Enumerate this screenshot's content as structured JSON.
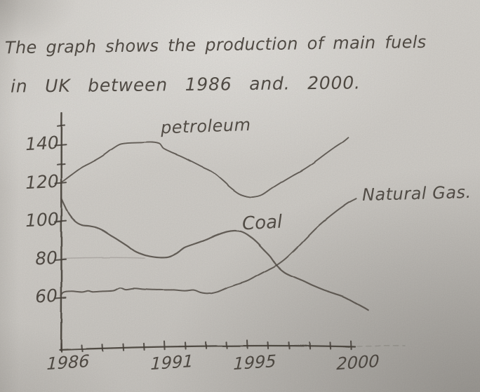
{
  "header": {
    "title_line1": "The graph shows the production of main fuels",
    "title_line2": "in UK between 1986 and. 2000."
  },
  "chart_data": {
    "type": "line",
    "title": "The graph shows the production of main fuels in UK between 1986 and 2000.",
    "xlabel": "",
    "ylabel": "",
    "grid": false,
    "legend": "inline-handwritten-labels",
    "colors": {
      "pencil": "#554f48",
      "axis_pencil": "#49433c",
      "paper": "#d2cfca"
    },
    "x_years": [
      1986,
      1987,
      1988,
      1989,
      1990,
      1991,
      1992,
      1993,
      1994,
      1995,
      1996,
      1997,
      1998,
      1999,
      2000
    ],
    "x_axis": {
      "min": 1986,
      "max": 2000,
      "tick_years": [
        1986,
        1987,
        1988,
        1989,
        1990,
        1991,
        1992,
        1993,
        1994,
        1995,
        1996,
        1997,
        1998,
        1999,
        2000
      ],
      "labels": [
        {
          "year": 1986,
          "text": "1986"
        },
        {
          "year": 1991,
          "text": "1991"
        },
        {
          "year": 1995,
          "text": "1995"
        },
        {
          "year": 2000,
          "text": "2000"
        }
      ]
    },
    "y_axis": {
      "range": [
        50,
        152
      ],
      "ticks": [
        {
          "value": 150,
          "label": ""
        },
        {
          "value": 140,
          "label": "140"
        },
        {
          "value": 130,
          "label": ""
        },
        {
          "value": 120,
          "label": "120"
        },
        {
          "value": 100,
          "label": "100"
        },
        {
          "value": 80,
          "label": "80"
        },
        {
          "value": 60,
          "label": "60"
        }
      ]
    },
    "series": [
      {
        "name": "petroleum",
        "values": [
          120,
          128,
          134,
          141,
          141,
          137,
          131,
          126,
          118,
          113,
          117,
          124,
          130,
          138,
          144
        ],
        "draw_points": [
          [
            1986,
            120.5
          ],
          [
            1986.5,
            124.5
          ],
          [
            1987,
            128
          ],
          [
            1987.5,
            131.2
          ],
          [
            1988,
            134.5
          ],
          [
            1988.5,
            138
          ],
          [
            1988.85,
            140.3
          ],
          [
            1989.2,
            141.2
          ],
          [
            1989.8,
            141.4
          ],
          [
            1990.4,
            141.3
          ],
          [
            1990.75,
            140.6
          ],
          [
            1990.95,
            138.5
          ],
          [
            1991.3,
            136.3
          ],
          [
            1991.8,
            133.8
          ],
          [
            1992.3,
            131.5
          ],
          [
            1992.8,
            128.8
          ],
          [
            1993.3,
            125.8
          ],
          [
            1993.8,
            121.5
          ],
          [
            1994.2,
            117.8
          ],
          [
            1994.6,
            114.6
          ],
          [
            1995,
            113
          ],
          [
            1995.3,
            112.8
          ],
          [
            1995.7,
            114.2
          ],
          [
            1996.2,
            117.5
          ],
          [
            1996.7,
            120.8
          ],
          [
            1997.2,
            124.3
          ],
          [
            1997.7,
            127.3
          ],
          [
            1998.2,
            130.8
          ],
          [
            1998.7,
            134.8
          ],
          [
            1999.2,
            138.8
          ],
          [
            1999.6,
            141.8
          ],
          [
            1999.85,
            143.8
          ]
        ]
      },
      {
        "name": "Coal",
        "values": [
          112,
          98,
          96,
          87,
          83,
          81,
          86,
          91,
          95,
          93,
          79,
          72,
          67,
          63,
          58
        ],
        "draw_points": [
          [
            1986,
            112.5
          ],
          [
            1986.15,
            108.5
          ],
          [
            1986.4,
            103.5
          ],
          [
            1986.7,
            100
          ],
          [
            1987,
            98.3
          ],
          [
            1987.35,
            97.6
          ],
          [
            1987.7,
            96.8
          ],
          [
            1988,
            95.6
          ],
          [
            1988.4,
            93
          ],
          [
            1988.8,
            90
          ],
          [
            1989.2,
            87.2
          ],
          [
            1989.6,
            84.6
          ],
          [
            1990,
            82.6
          ],
          [
            1990.4,
            81.4
          ],
          [
            1990.8,
            81.2
          ],
          [
            1991.2,
            81.6
          ],
          [
            1991.6,
            83.4
          ],
          [
            1992,
            86.3
          ],
          [
            1992.5,
            88.6
          ],
          [
            1993,
            90.6
          ],
          [
            1993.5,
            92.6
          ],
          [
            1994,
            94.6
          ],
          [
            1994.35,
            95.4
          ],
          [
            1994.7,
            94.9
          ],
          [
            1995,
            93
          ],
          [
            1995.4,
            89.6
          ],
          [
            1995.8,
            85.6
          ],
          [
            1996.1,
            81.8
          ],
          [
            1996.4,
            77
          ],
          [
            1996.8,
            73.6
          ],
          [
            1997.2,
            71.4
          ],
          [
            1997.7,
            68.8
          ],
          [
            1998.2,
            66.4
          ],
          [
            1998.7,
            64.4
          ],
          [
            1999.2,
            62.4
          ],
          [
            1999.7,
            60.4
          ],
          [
            2000.2,
            57.6
          ],
          [
            2000.6,
            55.4
          ],
          [
            2000.85,
            53.8
          ]
        ]
      },
      {
        "name": "Natural Gas.",
        "values": [
          62,
          63,
          63,
          64,
          65,
          64,
          64,
          62,
          65,
          69,
          75,
          83,
          93,
          103,
          112
        ],
        "draw_points": [
          [
            1986,
            61.5
          ],
          [
            1986.12,
            63
          ],
          [
            1986.5,
            63.4
          ],
          [
            1987,
            63.2
          ],
          [
            1987.3,
            63.9
          ],
          [
            1987.55,
            63.1
          ],
          [
            1988,
            63.4
          ],
          [
            1988.5,
            64
          ],
          [
            1988.85,
            65.4
          ],
          [
            1989.1,
            64.2
          ],
          [
            1989.5,
            64.8
          ],
          [
            1990,
            64.6
          ],
          [
            1990.5,
            64.1
          ],
          [
            1991,
            63.9
          ],
          [
            1991.5,
            64.1
          ],
          [
            1992,
            63.8
          ],
          [
            1992.4,
            63.9
          ],
          [
            1992.75,
            62.6
          ],
          [
            1993.1,
            62.4
          ],
          [
            1993.5,
            63.2
          ],
          [
            1994,
            65
          ],
          [
            1994.5,
            67
          ],
          [
            1995,
            69.2
          ],
          [
            1995.5,
            71.8
          ],
          [
            1996,
            74.6
          ],
          [
            1996.4,
            77.2
          ],
          [
            1996.9,
            81.2
          ],
          [
            1997.4,
            86.4
          ],
          [
            1997.9,
            92
          ],
          [
            1998.4,
            97.4
          ],
          [
            1998.9,
            102.2
          ],
          [
            1999.4,
            106.2
          ],
          [
            1999.9,
            109.8
          ],
          [
            2000.25,
            112.2
          ]
        ]
      }
    ]
  }
}
